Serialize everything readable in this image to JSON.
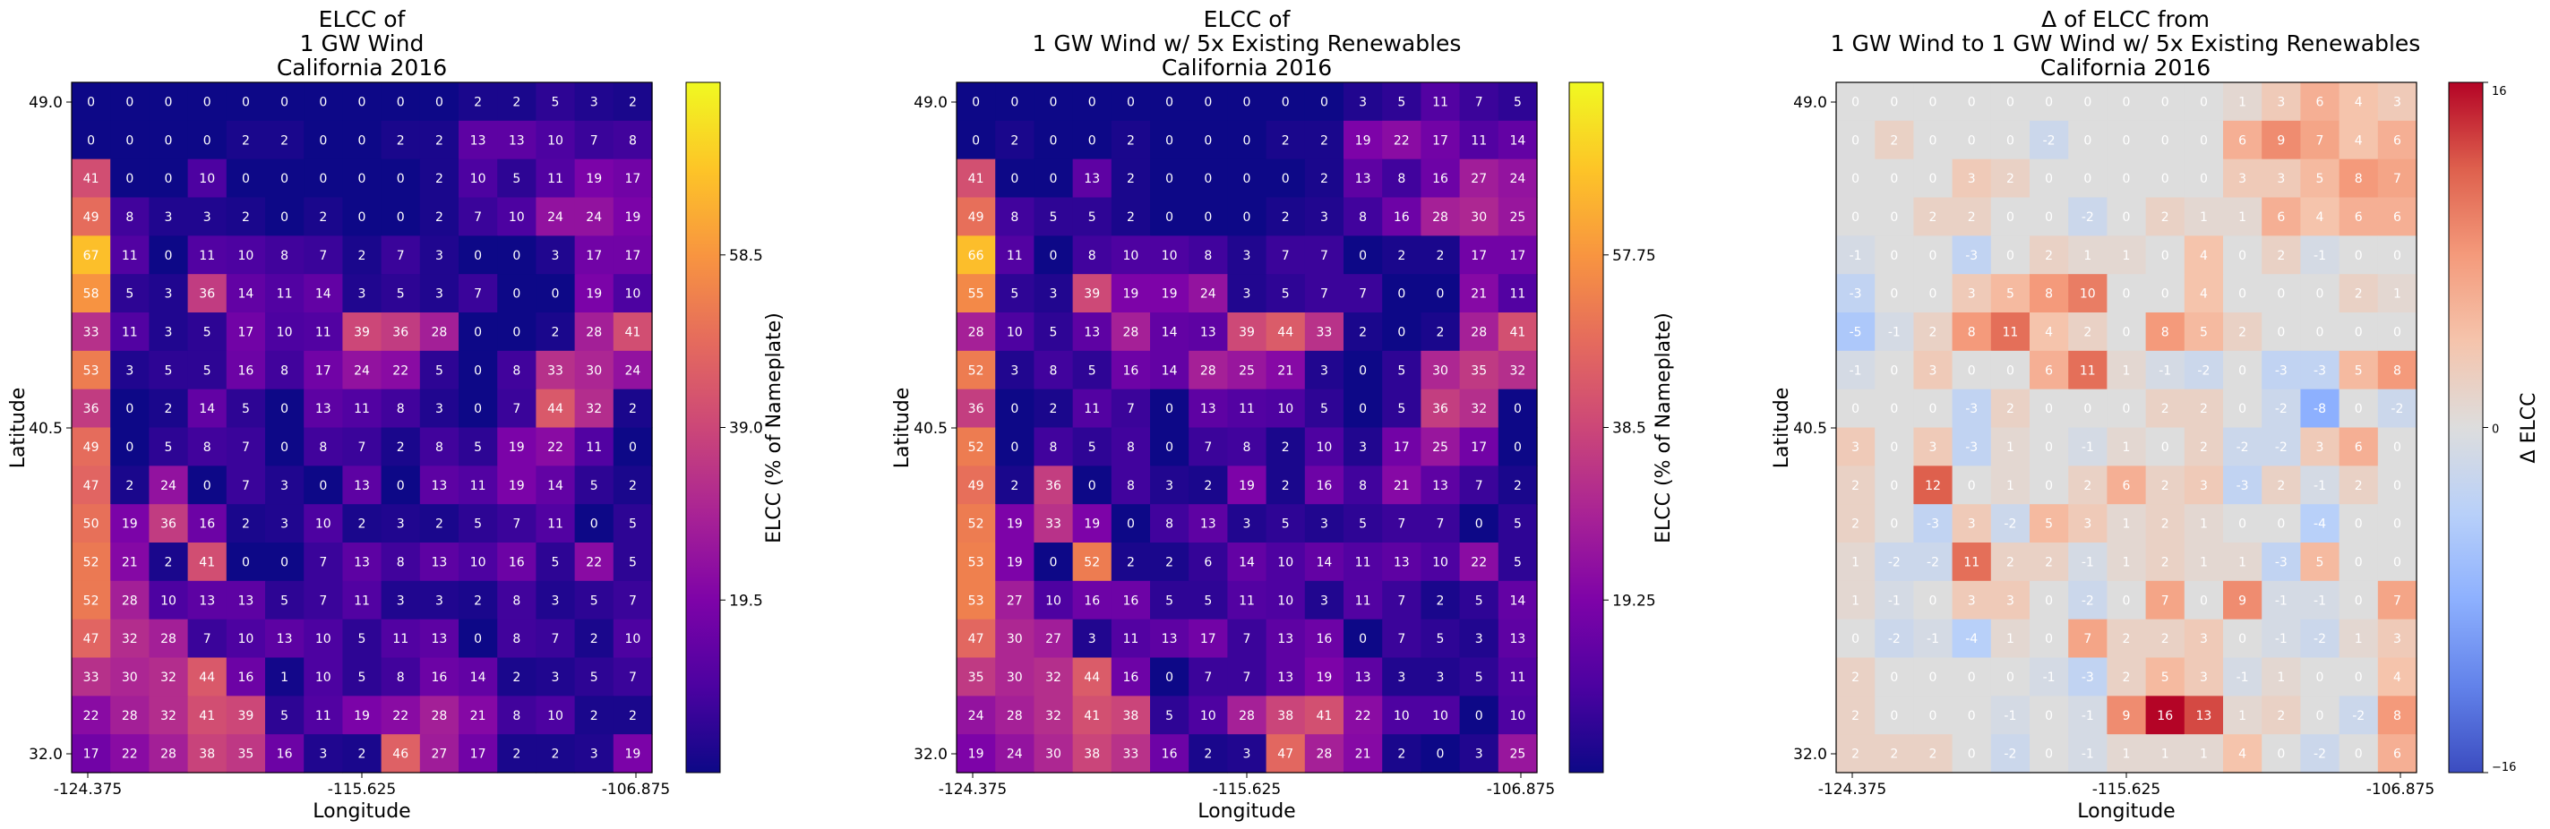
{
  "chart_data": [
    {
      "type": "heatmap",
      "title_lines": [
        "ELCC of",
        "1 GW Wind",
        "California 2016"
      ],
      "xlabel": "Longitude",
      "ylabel": "Latitude",
      "colorbar_label": "ELCC (% of Nameplate)",
      "colormap": "plasma",
      "vmin": 0,
      "vmax": 78,
      "colorbar_ticks": [
        "19.5",
        "39.0",
        "58.5"
      ],
      "colorbar_tick_values": [
        19.5,
        39.0,
        58.5
      ],
      "x_tick_labels": [
        "-124.375",
        "-115.625",
        "-106.875"
      ],
      "y_tick_labels": [
        "49.0",
        "40.5",
        "32.0"
      ],
      "x_range": [
        -124.375,
        -106.875
      ],
      "y_range": [
        32.0,
        49.0
      ],
      "values": [
        [
          0,
          0,
          0,
          0,
          0,
          0,
          0,
          0,
          0,
          0,
          2,
          2,
          5,
          3,
          2
        ],
        [
          0,
          0,
          0,
          0,
          2,
          2,
          0,
          0,
          2,
          2,
          13,
          13,
          10,
          7,
          8
        ],
        [
          41,
          0,
          0,
          10,
          0,
          0,
          0,
          0,
          0,
          2,
          10,
          5,
          11,
          19,
          17
        ],
        [
          49,
          8,
          3,
          3,
          2,
          0,
          2,
          0,
          0,
          2,
          7,
          10,
          24,
          24,
          19
        ],
        [
          67,
          11,
          0,
          11,
          10,
          8,
          7,
          2,
          7,
          3,
          0,
          0,
          3,
          17,
          17
        ],
        [
          58,
          5,
          3,
          36,
          14,
          11,
          14,
          3,
          5,
          3,
          7,
          0,
          0,
          19,
          10
        ],
        [
          33,
          11,
          3,
          5,
          17,
          10,
          11,
          39,
          36,
          28,
          0,
          0,
          2,
          28,
          41
        ],
        [
          53,
          3,
          5,
          5,
          16,
          8,
          17,
          24,
          22,
          5,
          0,
          8,
          33,
          30,
          24
        ],
        [
          36,
          0,
          2,
          14,
          5,
          0,
          13,
          11,
          8,
          3,
          0,
          7,
          44,
          32,
          2
        ],
        [
          49,
          0,
          5,
          8,
          7,
          0,
          8,
          7,
          2,
          8,
          5,
          19,
          22,
          11,
          0
        ],
        [
          47,
          2,
          24,
          0,
          7,
          3,
          0,
          13,
          0,
          13,
          11,
          19,
          14,
          5,
          2
        ],
        [
          50,
          19,
          36,
          16,
          2,
          3,
          10,
          2,
          3,
          2,
          5,
          7,
          11,
          0,
          5
        ],
        [
          52,
          21,
          2,
          41,
          0,
          0,
          7,
          13,
          8,
          13,
          10,
          16,
          5,
          22,
          5
        ],
        [
          52,
          28,
          10,
          13,
          13,
          5,
          7,
          11,
          3,
          3,
          2,
          8,
          3,
          5,
          7
        ],
        [
          47,
          32,
          28,
          7,
          10,
          13,
          10,
          5,
          11,
          13,
          0,
          8,
          7,
          2,
          10
        ],
        [
          33,
          30,
          32,
          44,
          16,
          1,
          10,
          5,
          8,
          16,
          14,
          2,
          3,
          5,
          7
        ],
        [
          22,
          28,
          32,
          41,
          39,
          5,
          11,
          19,
          22,
          28,
          21,
          8,
          10,
          2,
          2
        ],
        [
          17,
          22,
          28,
          38,
          35,
          16,
          3,
          2,
          46,
          27,
          17,
          2,
          2,
          3,
          19
        ]
      ]
    },
    {
      "type": "heatmap",
      "title_lines": [
        "ELCC of",
        "1 GW Wind w/ 5x Existing Renewables",
        "California 2016"
      ],
      "xlabel": "Longitude",
      "ylabel": "Latitude",
      "colorbar_label": "ELCC (% of Nameplate)",
      "colormap": "plasma",
      "vmin": 0,
      "vmax": 77,
      "colorbar_ticks": [
        "19.25",
        "38.5",
        "57.75"
      ],
      "colorbar_tick_values": [
        19.25,
        38.5,
        57.75
      ],
      "x_tick_labels": [
        "-124.375",
        "-115.625",
        "-106.875"
      ],
      "y_tick_labels": [
        "49.0",
        "40.5",
        "32.0"
      ],
      "x_range": [
        -124.375,
        -106.875
      ],
      "y_range": [
        32.0,
        49.0
      ],
      "values": [
        [
          0,
          0,
          0,
          0,
          0,
          0,
          0,
          0,
          0,
          0,
          3,
          5,
          11,
          7,
          5
        ],
        [
          0,
          2,
          0,
          0,
          2,
          0,
          0,
          0,
          2,
          2,
          19,
          22,
          17,
          11,
          14
        ],
        [
          41,
          0,
          0,
          13,
          2,
          0,
          0,
          0,
          0,
          2,
          13,
          8,
          16,
          27,
          24
        ],
        [
          49,
          8,
          5,
          5,
          2,
          0,
          0,
          0,
          2,
          3,
          8,
          16,
          28,
          30,
          25
        ],
        [
          66,
          11,
          0,
          8,
          10,
          10,
          8,
          3,
          7,
          7,
          0,
          2,
          2,
          17,
          17
        ],
        [
          55,
          5,
          3,
          39,
          19,
          19,
          24,
          3,
          5,
          7,
          7,
          0,
          0,
          21,
          11
        ],
        [
          28,
          10,
          5,
          13,
          28,
          14,
          13,
          39,
          44,
          33,
          2,
          0,
          2,
          28,
          41
        ],
        [
          52,
          3,
          8,
          5,
          16,
          14,
          28,
          25,
          21,
          3,
          0,
          5,
          30,
          35,
          32
        ],
        [
          36,
          0,
          2,
          11,
          7,
          0,
          13,
          11,
          10,
          5,
          0,
          5,
          36,
          32,
          0
        ],
        [
          52,
          0,
          8,
          5,
          8,
          0,
          7,
          8,
          2,
          10,
          3,
          17,
          25,
          17,
          0
        ],
        [
          49,
          2,
          36,
          0,
          8,
          3,
          2,
          19,
          2,
          16,
          8,
          21,
          13,
          7,
          2
        ],
        [
          52,
          19,
          33,
          19,
          0,
          8,
          13,
          3,
          5,
          3,
          5,
          7,
          7,
          0,
          5
        ],
        [
          53,
          19,
          0,
          52,
          2,
          2,
          6,
          14,
          10,
          14,
          11,
          13,
          10,
          22,
          5
        ],
        [
          53,
          27,
          10,
          16,
          16,
          5,
          5,
          11,
          10,
          3,
          11,
          7,
          2,
          5,
          14
        ],
        [
          47,
          30,
          27,
          3,
          11,
          13,
          17,
          7,
          13,
          16,
          0,
          7,
          5,
          3,
          13
        ],
        [
          35,
          30,
          32,
          44,
          16,
          0,
          7,
          7,
          13,
          19,
          13,
          3,
          3,
          5,
          11
        ],
        [
          24,
          28,
          32,
          41,
          38,
          5,
          10,
          28,
          38,
          41,
          22,
          10,
          10,
          0,
          10
        ],
        [
          19,
          24,
          30,
          38,
          33,
          16,
          2,
          3,
          47,
          28,
          21,
          2,
          0,
          3,
          25
        ]
      ]
    },
    {
      "type": "heatmap",
      "title_lines": [
        "Δ of ELCC from",
        "1 GW Wind to 1 GW Wind w/ 5x Existing Renewables",
        "California 2016"
      ],
      "xlabel": "Longitude",
      "ylabel": "Latitude",
      "colorbar_label": "Δ ELCC",
      "colormap": "coolwarm",
      "vmin": -16,
      "vmax": 16,
      "colorbar_ticks": [
        "−16",
        "0",
        "16"
      ],
      "colorbar_tick_values": [
        -16,
        0,
        16
      ],
      "x_tick_labels": [
        "-124.375",
        "-115.625",
        "-106.875"
      ],
      "y_tick_labels": [
        "49.0",
        "40.5",
        "32.0"
      ],
      "x_range": [
        -124.375,
        -106.875
      ],
      "y_range": [
        32.0,
        49.0
      ],
      "values": [
        [
          0,
          0,
          0,
          0,
          0,
          0,
          0,
          0,
          0,
          0,
          1,
          3,
          6,
          4,
          3
        ],
        [
          0,
          2,
          0,
          0,
          0,
          -2,
          0,
          0,
          0,
          0,
          6,
          9,
          7,
          4,
          6
        ],
        [
          0,
          0,
          0,
          3,
          2,
          0,
          0,
          0,
          0,
          0,
          3,
          3,
          5,
          8,
          7
        ],
        [
          0,
          0,
          2,
          2,
          0,
          0,
          -2,
          0,
          2,
          1,
          1,
          6,
          4,
          6,
          6
        ],
        [
          -1,
          0,
          0,
          -3,
          0,
          2,
          1,
          1,
          0,
          4,
          0,
          2,
          -1,
          0,
          0
        ],
        [
          -3,
          0,
          0,
          3,
          5,
          8,
          10,
          0,
          0,
          4,
          0,
          0,
          0,
          2,
          1
        ],
        [
          -5,
          -1,
          2,
          8,
          11,
          4,
          2,
          0,
          8,
          5,
          2,
          0,
          0,
          0,
          0
        ],
        [
          -1,
          0,
          3,
          0,
          0,
          6,
          11,
          1,
          -1,
          -2,
          0,
          -3,
          -3,
          5,
          8
        ],
        [
          0,
          0,
          0,
          -3,
          2,
          0,
          0,
          0,
          2,
          2,
          0,
          -2,
          -8,
          0,
          -2
        ],
        [
          3,
          0,
          3,
          -3,
          1,
          0,
          -1,
          1,
          0,
          2,
          -2,
          -2,
          3,
          6,
          0
        ],
        [
          2,
          0,
          12,
          0,
          1,
          0,
          2,
          6,
          2,
          3,
          -3,
          2,
          -1,
          2,
          0
        ],
        [
          2,
          0,
          -3,
          3,
          -2,
          5,
          3,
          1,
          2,
          1,
          0,
          0,
          -4,
          0,
          0
        ],
        [
          1,
          -2,
          -2,
          11,
          2,
          2,
          -1,
          1,
          2,
          1,
          1,
          -3,
          5,
          0,
          0
        ],
        [
          1,
          -1,
          0,
          3,
          3,
          0,
          -2,
          0,
          7,
          0,
          9,
          -1,
          -1,
          0,
          7
        ],
        [
          0,
          -2,
          -1,
          -4,
          1,
          0,
          7,
          2,
          2,
          3,
          0,
          -1,
          -2,
          1,
          3
        ],
        [
          2,
          0,
          0,
          0,
          0,
          -1,
          -3,
          2,
          5,
          3,
          -1,
          1,
          0,
          0,
          4
        ],
        [
          2,
          0,
          0,
          0,
          -1,
          0,
          -1,
          9,
          16,
          13,
          1,
          2,
          0,
          -2,
          8
        ],
        [
          2,
          2,
          2,
          0,
          -2,
          0,
          -1,
          1,
          1,
          1,
          4,
          0,
          -2,
          0,
          6
        ]
      ]
    }
  ]
}
